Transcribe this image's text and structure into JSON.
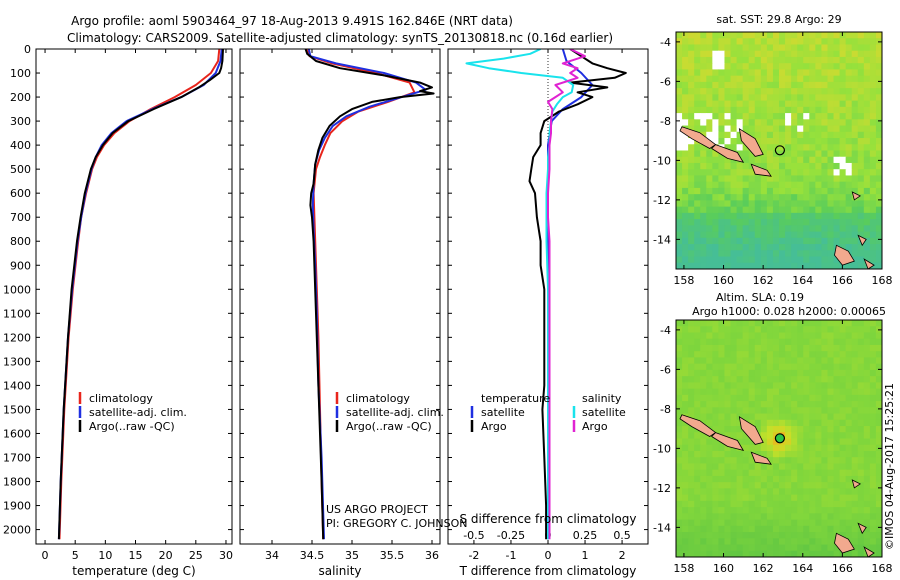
{
  "figure": {
    "title_line1": "Argo profile: aoml 5903464_97 18-Aug-2013 9.491S 162.846E (NRT data)",
    "title_line2": "Climatology: CARS2009. Satellite-adjusted climatology: synTS_20130818.nc (0.16d earlier)",
    "credit_line1": "US ARGO PROJECT",
    "credit_line2": "PI: GREGORY C. JOHNSON",
    "imos_stamp": "©IMOS 04-Aug-2017 15:25:21"
  },
  "colors": {
    "climatology": "#e8251c",
    "satellite": "#1f2fe0",
    "argo": "#000000",
    "satellite_diff_s": "#19e3ec",
    "argo_diff_s": "#e023d2",
    "land": "#f2a98e"
  },
  "chart_data": [
    {
      "type": "line",
      "title": "",
      "xlabel": "temperature (deg C)",
      "ylabel": "",
      "xlim": [
        -1.5,
        31
      ],
      "ylim": [
        2060,
        0
      ],
      "x_ticks": [
        "0",
        "5",
        "10",
        "15",
        "20",
        "25",
        "30"
      ],
      "y_ticks": [
        "0",
        "100",
        "200",
        "300",
        "400",
        "500",
        "600",
        "700",
        "800",
        "900",
        "1000",
        "1100",
        "1200",
        "1300",
        "1400",
        "1500",
        "1600",
        "1700",
        "1800",
        "1900",
        "2000"
      ],
      "legend": [
        "climatology",
        "satellite-adj. clim.",
        "Argo(..raw -QC)"
      ],
      "legend_position": "lower-center",
      "series": [
        {
          "name": "climatology",
          "color": "#e8251c",
          "depth": [
            0,
            50,
            100,
            150,
            200,
            250,
            300,
            350,
            400,
            450,
            500,
            600,
            700,
            800,
            1000,
            1200,
            1500,
            1800,
            2040
          ],
          "values": [
            28.9,
            28.7,
            27.5,
            25.0,
            21.5,
            17.5,
            14.0,
            11.5,
            9.8,
            8.6,
            7.8,
            6.8,
            6.0,
            5.5,
            4.6,
            3.9,
            3.2,
            2.7,
            2.4
          ]
        },
        {
          "name": "satellite-adj. clim.",
          "color": "#1f2fe0",
          "depth": [
            0,
            50,
            100,
            150,
            200,
            250,
            300,
            350,
            400,
            450,
            500,
            600,
            700,
            800,
            1000,
            1200,
            1500,
            1800,
            2040
          ],
          "values": [
            29.3,
            29.1,
            28.3,
            26.3,
            22.6,
            17.8,
            13.5,
            11.0,
            9.4,
            8.4,
            7.7,
            6.7,
            6.0,
            5.4,
            4.5,
            3.8,
            3.1,
            2.6,
            2.3
          ]
        },
        {
          "name": "Argo(..raw -QC)",
          "color": "#000000",
          "depth": [
            0,
            50,
            80,
            100,
            130,
            160,
            200,
            250,
            300,
            350,
            400,
            450,
            500,
            600,
            700,
            800,
            1000,
            1200,
            1500,
            1800,
            2040
          ],
          "values": [
            29.5,
            29.4,
            29.2,
            28.9,
            27.3,
            25.5,
            22.6,
            18.0,
            13.8,
            11.2,
            9.6,
            8.4,
            7.6,
            6.6,
            5.9,
            5.3,
            4.4,
            3.8,
            3.1,
            2.6,
            2.3
          ]
        }
      ]
    },
    {
      "type": "line",
      "title": "",
      "xlabel": "salinity",
      "ylabel": "",
      "xlim": [
        33.6,
        36.1
      ],
      "ylim": [
        2060,
        0
      ],
      "x_ticks": [
        "34",
        "34.5",
        "35",
        "35.5",
        "36"
      ],
      "legend": [
        "climatology",
        "satellite-adj. clim.",
        "Argo(..raw -QC)"
      ],
      "legend_position": "lower-right",
      "series": [
        {
          "name": "climatology",
          "color": "#e8251c",
          "depth": [
            0,
            30,
            60,
            100,
            140,
            180,
            220,
            260,
            300,
            350,
            400,
            450,
            500,
            600,
            700,
            800,
            1000,
            1200,
            1500,
            1800,
            2040
          ],
          "values": [
            34.43,
            34.47,
            34.75,
            35.3,
            35.72,
            35.78,
            35.45,
            35.08,
            34.88,
            34.73,
            34.66,
            34.6,
            34.55,
            34.52,
            34.53,
            34.54,
            34.56,
            34.58,
            34.6,
            34.62,
            34.64
          ]
        },
        {
          "name": "satellite-adj. clim.",
          "color": "#1f2fe0",
          "depth": [
            0,
            30,
            60,
            100,
            140,
            170,
            200,
            240,
            280,
            320,
            370,
            420,
            480,
            560,
            650,
            750,
            900,
            1100,
            1400,
            1700,
            2040
          ],
          "values": [
            34.46,
            34.48,
            34.8,
            35.4,
            35.8,
            35.92,
            35.62,
            35.22,
            34.93,
            34.76,
            34.66,
            34.59,
            34.54,
            34.52,
            34.51,
            34.52,
            34.54,
            34.56,
            34.58,
            34.62,
            34.65
          ]
        },
        {
          "name": "Argo(..raw -QC)",
          "color": "#000000",
          "depth": [
            0,
            20,
            50,
            80,
            110,
            140,
            160,
            175,
            185,
            200,
            220,
            250,
            280,
            320,
            370,
            420,
            480,
            560,
            600,
            650,
            700,
            800,
            1000,
            1200,
            1500,
            1800,
            2040
          ],
          "values": [
            34.42,
            34.44,
            34.55,
            34.85,
            35.4,
            35.85,
            36.0,
            35.85,
            36.02,
            35.6,
            35.25,
            35.0,
            34.85,
            34.72,
            34.63,
            34.58,
            34.54,
            34.52,
            34.49,
            34.48,
            34.5,
            34.52,
            34.54,
            34.56,
            34.59,
            34.62,
            34.64
          ]
        }
      ]
    },
    {
      "type": "line",
      "title": "",
      "xlabel": "T difference from climatology",
      "xlabel_secondary": "S difference from climatology",
      "ylabel": "",
      "xlim": [
        -2.7,
        2.7
      ],
      "ylim": [
        2060,
        0
      ],
      "x_ticks": [
        "-2",
        "-1",
        "0",
        "1",
        "2"
      ],
      "x_ticks_secondary": [
        "-0.5",
        "-0.25",
        "0",
        "0.25",
        "0.5"
      ],
      "legend_groups": [
        {
          "heading": "temperature",
          "entries": [
            "satellite",
            "Argo"
          ]
        },
        {
          "heading": "salinity",
          "entries": [
            "satellite",
            "Argo"
          ]
        }
      ],
      "legend_position": "lower-center",
      "series": [
        {
          "name": "temperature satellite",
          "color": "#1f2fe0",
          "depth": [
            0,
            50,
            100,
            150,
            200,
            250,
            300,
            400,
            500,
            700,
            1000,
            1500,
            2040
          ],
          "values": [
            0.4,
            0.5,
            0.9,
            1.2,
            0.9,
            0.4,
            0.1,
            0.0,
            0.0,
            0.0,
            0.0,
            0.0,
            0.0
          ]
        },
        {
          "name": "temperature Argo",
          "color": "#000000",
          "depth": [
            0,
            30,
            60,
            80,
            100,
            120,
            140,
            160,
            180,
            200,
            230,
            260,
            300,
            350,
            400,
            450,
            500,
            550,
            600,
            700,
            800,
            900,
            1000,
            1200,
            1400,
            1500,
            1700,
            1900,
            2040
          ],
          "values": [
            0.6,
            0.9,
            1.2,
            1.6,
            2.1,
            1.8,
            0.6,
            1.6,
            0.8,
            1.2,
            0.8,
            0.3,
            -0.1,
            -0.2,
            -0.2,
            -0.4,
            -0.45,
            -0.5,
            -0.35,
            -0.3,
            -0.2,
            -0.2,
            -0.1,
            -0.1,
            -0.1,
            -0.15,
            -0.1,
            -0.05,
            -0.05
          ]
        },
        {
          "name": "salinity satellite",
          "color": "#19e3ec",
          "depth": [
            0,
            20,
            40,
            60,
            80,
            100,
            120,
            150,
            180,
            200,
            230,
            260,
            300,
            350,
            400,
            450,
            500,
            600,
            800,
            1000,
            1500,
            2040
          ],
          "values": [
            -0.05,
            -0.12,
            -0.3,
            -0.55,
            -0.4,
            -0.18,
            0.1,
            0.17,
            0.16,
            0.1,
            0.06,
            0.03,
            0.02,
            0.01,
            0.01,
            0.0,
            0.0,
            -0.01,
            -0.01,
            0.0,
            0.0,
            0.0
          ]
        },
        {
          "name": "salinity Argo",
          "color": "#e023d2",
          "depth": [
            0,
            30,
            60,
            80,
            100,
            120,
            150,
            180,
            200,
            220,
            250,
            300,
            350,
            400,
            500,
            600,
            700,
            800,
            1000,
            1500,
            2040
          ],
          "values": [
            0.15,
            0.25,
            0.1,
            0.2,
            0.15,
            0.2,
            0.05,
            0.1,
            0.05,
            0.0,
            0.03,
            0.02,
            0.02,
            0.01,
            0.01,
            0.0,
            0.0,
            0.01,
            0.01,
            0.01,
            0.01
          ]
        }
      ]
    },
    {
      "type": "heatmap",
      "title": "sat. SST: 29.8 Argo: 29",
      "xlabel": "",
      "ylabel": "",
      "xlim": [
        157.6,
        168
      ],
      "ylim": [
        -15.5,
        -3.5
      ],
      "x_ticks": [
        "158",
        "160",
        "162",
        "164",
        "166",
        "168"
      ],
      "y_ticks": [
        "-4",
        "-6",
        "-8",
        "-10",
        "-12",
        "-14"
      ],
      "marker": {
        "lon": 162.846,
        "lat": -9.491
      }
    },
    {
      "type": "heatmap",
      "title": "Altim. SLA: 0.19",
      "subtitle": "Argo h1000: 0.028 h2000: 0.00065",
      "xlabel": "",
      "ylabel": "",
      "xlim": [
        157.6,
        168
      ],
      "ylim": [
        -15.5,
        -3.5
      ],
      "x_ticks": [
        "158",
        "160",
        "162",
        "164",
        "166",
        "168"
      ],
      "y_ticks": [
        "-4",
        "-6",
        "-8",
        "-10",
        "-12",
        "-14"
      ],
      "marker": {
        "lon": 162.846,
        "lat": -9.491
      }
    }
  ]
}
